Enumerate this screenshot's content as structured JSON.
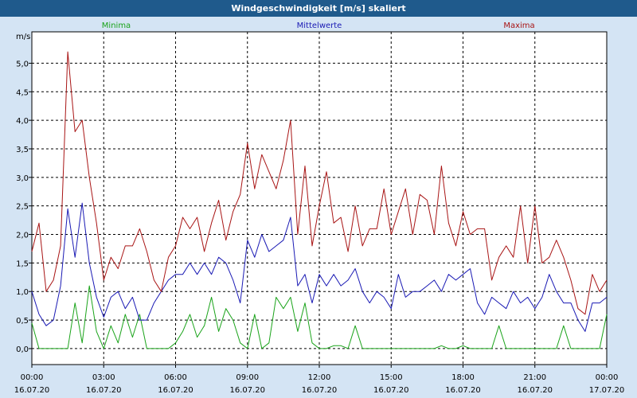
{
  "window": {
    "title": "Windgeschwindigkeit [m/s] skaliert"
  },
  "chart_data": {
    "type": "line",
    "ylabel": "m/s",
    "ylim": [
      -0.28,
      5.55
    ],
    "y_ticks": [
      0.0,
      0.5,
      1.0,
      1.5,
      2.0,
      2.5,
      3.0,
      3.5,
      4.0,
      4.5,
      5.0
    ],
    "y_tick_labels": [
      "0,0",
      "0,5",
      "1,0",
      "1,5",
      "2,0",
      "2,5",
      "3,0",
      "3,5",
      "4,0",
      "4,5",
      "5,0"
    ],
    "xlim": [
      0,
      24
    ],
    "x_ticks": [
      {
        "pos": 0,
        "time": "00:00",
        "date": "16.07.20"
      },
      {
        "pos": 3,
        "time": "03:00",
        "date": "16.07.20"
      },
      {
        "pos": 6,
        "time": "06:00",
        "date": "16.07.20"
      },
      {
        "pos": 9,
        "time": "09:00",
        "date": "16.07.20"
      },
      {
        "pos": 12,
        "time": "12:00",
        "date": "16.07.20"
      },
      {
        "pos": 15,
        "time": "15:00",
        "date": "16.07.20"
      },
      {
        "pos": 18,
        "time": "18:00",
        "date": "16.07.20"
      },
      {
        "pos": 21,
        "time": "21:00",
        "date": "16.07.20"
      },
      {
        "pos": 24,
        "time": "00:00",
        "date": "17.07.20"
      }
    ],
    "grid": true,
    "series": [
      {
        "name": "Minima",
        "color": "#1aa31a",
        "x": [
          0,
          0.3,
          0.6,
          0.9,
          1.2,
          1.5,
          1.8,
          2.1,
          2.4,
          2.7,
          3.0,
          3.3,
          3.6,
          3.9,
          4.2,
          4.5,
          4.8,
          5.1,
          5.4,
          5.7,
          6.0,
          6.3,
          6.6,
          6.9,
          7.2,
          7.5,
          7.8,
          8.1,
          8.4,
          8.7,
          9.0,
          9.3,
          9.6,
          9.9,
          10.2,
          10.5,
          10.8,
          11.1,
          11.4,
          11.7,
          12.0,
          12.3,
          12.6,
          12.9,
          13.2,
          13.5,
          13.8,
          14.1,
          14.4,
          14.7,
          15.0,
          15.3,
          15.6,
          15.9,
          16.2,
          16.5,
          16.8,
          17.1,
          17.4,
          17.7,
          18.0,
          18.3,
          18.6,
          18.9,
          19.2,
          19.5,
          19.8,
          20.1,
          20.4,
          20.7,
          21.0,
          21.3,
          21.6,
          21.9,
          22.2,
          22.5,
          22.8,
          23.1,
          23.4,
          23.7,
          24.0
        ],
        "values": [
          0.45,
          0.0,
          0.0,
          0.0,
          0.0,
          0.0,
          0.8,
          0.1,
          1.1,
          0.3,
          0.0,
          0.4,
          0.1,
          0.6,
          0.2,
          0.6,
          0.0,
          0.0,
          0.0,
          0.0,
          0.1,
          0.3,
          0.6,
          0.2,
          0.4,
          0.9,
          0.3,
          0.7,
          0.5,
          0.1,
          0.0,
          0.6,
          0.0,
          0.1,
          0.9,
          0.7,
          0.9,
          0.3,
          0.8,
          0.1,
          0.0,
          0.0,
          0.05,
          0.05,
          0.0,
          0.4,
          0.0,
          0.0,
          0.0,
          0.0,
          0.0,
          0.0,
          0.0,
          0.0,
          0.0,
          0.0,
          0.0,
          0.05,
          0.0,
          0.0,
          0.05,
          0.0,
          0.0,
          0.0,
          0.0,
          0.4,
          0.0,
          0.0,
          0.0,
          0.0,
          0.0,
          0.0,
          0.0,
          0.0,
          0.4,
          0.0,
          0.0,
          0.0,
          0.0,
          0.0,
          0.6
        ]
      },
      {
        "name": "Mittelwerte",
        "color": "#1a1ab4",
        "x": [
          0,
          0.3,
          0.6,
          0.9,
          1.2,
          1.5,
          1.8,
          2.1,
          2.4,
          2.7,
          3.0,
          3.3,
          3.6,
          3.9,
          4.2,
          4.5,
          4.8,
          5.1,
          5.4,
          5.7,
          6.0,
          6.3,
          6.6,
          6.9,
          7.2,
          7.5,
          7.8,
          8.1,
          8.4,
          8.7,
          9.0,
          9.3,
          9.6,
          9.9,
          10.2,
          10.5,
          10.8,
          11.1,
          11.4,
          11.7,
          12.0,
          12.3,
          12.6,
          12.9,
          13.2,
          13.5,
          13.8,
          14.1,
          14.4,
          14.7,
          15.0,
          15.3,
          15.6,
          15.9,
          16.2,
          16.5,
          16.8,
          17.1,
          17.4,
          17.7,
          18.0,
          18.3,
          18.6,
          18.9,
          19.2,
          19.5,
          19.8,
          20.1,
          20.4,
          20.7,
          21.0,
          21.3,
          21.6,
          21.9,
          22.2,
          22.5,
          22.8,
          23.1,
          23.4,
          23.7,
          24.0
        ],
        "values": [
          1.0,
          0.6,
          0.4,
          0.5,
          1.1,
          2.45,
          1.6,
          2.55,
          1.5,
          0.9,
          0.55,
          0.9,
          1.0,
          0.7,
          0.9,
          0.5,
          0.5,
          0.8,
          1.0,
          1.2,
          1.3,
          1.3,
          1.5,
          1.3,
          1.5,
          1.3,
          1.6,
          1.5,
          1.2,
          0.8,
          1.9,
          1.6,
          2.0,
          1.7,
          1.8,
          1.9,
          2.3,
          1.1,
          1.3,
          0.8,
          1.3,
          1.1,
          1.3,
          1.1,
          1.2,
          1.4,
          1.0,
          0.8,
          1.0,
          0.9,
          0.7,
          1.3,
          0.9,
          1.0,
          1.0,
          1.1,
          1.2,
          1.0,
          1.3,
          1.2,
          1.3,
          1.4,
          0.8,
          0.6,
          0.9,
          0.8,
          0.7,
          1.0,
          0.8,
          0.9,
          0.7,
          0.9,
          1.3,
          1.0,
          0.8,
          0.8,
          0.5,
          0.3,
          0.8,
          0.8,
          0.9
        ]
      },
      {
        "name": "Maxima",
        "color": "#a81414",
        "x": [
          0,
          0.3,
          0.6,
          0.9,
          1.2,
          1.5,
          1.8,
          2.1,
          2.4,
          2.7,
          3.0,
          3.3,
          3.6,
          3.9,
          4.2,
          4.5,
          4.8,
          5.1,
          5.4,
          5.7,
          6.0,
          6.3,
          6.6,
          6.9,
          7.2,
          7.5,
          7.8,
          8.1,
          8.4,
          8.7,
          9.0,
          9.3,
          9.6,
          9.9,
          10.2,
          10.5,
          10.8,
          11.1,
          11.4,
          11.7,
          12.0,
          12.3,
          12.6,
          12.9,
          13.2,
          13.5,
          13.8,
          14.1,
          14.4,
          14.7,
          15.0,
          15.3,
          15.6,
          15.9,
          16.2,
          16.5,
          16.8,
          17.1,
          17.4,
          17.7,
          18.0,
          18.3,
          18.6,
          18.9,
          19.2,
          19.5,
          19.8,
          20.1,
          20.4,
          20.7,
          21.0,
          21.3,
          21.6,
          21.9,
          22.2,
          22.5,
          22.8,
          23.1,
          23.4,
          23.7,
          24.0
        ],
        "values": [
          1.7,
          2.2,
          1.0,
          1.2,
          1.8,
          5.2,
          3.8,
          4.0,
          3.0,
          2.2,
          1.2,
          1.6,
          1.4,
          1.8,
          1.8,
          2.1,
          1.7,
          1.2,
          1.0,
          1.6,
          1.8,
          2.3,
          2.1,
          2.3,
          1.7,
          2.2,
          2.6,
          1.9,
          2.4,
          2.7,
          3.6,
          2.8,
          3.4,
          3.1,
          2.8,
          3.3,
          4.0,
          2.0,
          3.2,
          1.8,
          2.5,
          3.1,
          2.2,
          2.3,
          1.7,
          2.5,
          1.8,
          2.1,
          2.1,
          2.8,
          2.0,
          2.4,
          2.8,
          2.0,
          2.7,
          2.6,
          2.0,
          3.2,
          2.2,
          1.8,
          2.4,
          2.0,
          2.1,
          2.1,
          1.2,
          1.6,
          1.8,
          1.6,
          2.5,
          1.5,
          2.5,
          1.5,
          1.6,
          1.9,
          1.6,
          1.2,
          0.7,
          0.6,
          1.3,
          1.0,
          1.2
        ]
      }
    ]
  }
}
